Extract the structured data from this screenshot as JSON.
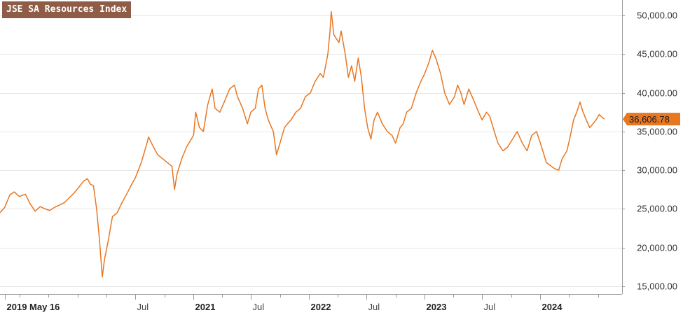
{
  "chart_data": {
    "type": "line",
    "title": "JSE SA Resources Index",
    "xlabel": "",
    "ylabel": "",
    "ylim": [
      14000,
      52000
    ],
    "xlim": [
      "2019-05-01",
      "2024-09-15"
    ],
    "grid": true,
    "y_axis_position": "right",
    "y_ticks": [
      {
        "value": 15000,
        "label": "15,000.00"
      },
      {
        "value": 20000,
        "label": "20,000.00"
      },
      {
        "value": 25000,
        "label": "25,000.00"
      },
      {
        "value": 30000,
        "label": "30,000.00"
      },
      {
        "value": 35000,
        "label": "35,000.00"
      },
      {
        "value": 40000,
        "label": "40,000.00"
      },
      {
        "value": 45000,
        "label": "45,000.00"
      },
      {
        "value": 50000,
        "label": "50,000.00"
      }
    ],
    "x_ticks": [
      {
        "date": "2019-05-16",
        "label": "2019 May 16",
        "major": true
      },
      {
        "date": "2020-07-01",
        "label": "Jul",
        "major": false
      },
      {
        "date": "2021-01-01",
        "label": "2021",
        "major": true
      },
      {
        "date": "2021-07-01",
        "label": "Jul",
        "major": false
      },
      {
        "date": "2022-01-01",
        "label": "2022",
        "major": true
      },
      {
        "date": "2022-07-01",
        "label": "Jul",
        "major": false
      },
      {
        "date": "2023-01-01",
        "label": "2023",
        "major": true
      },
      {
        "date": "2023-07-01",
        "label": "Jul",
        "major": false
      },
      {
        "date": "2024-01-01",
        "label": "2024",
        "major": true
      }
    ],
    "minor_tick_dates": [
      "2019-07-01",
      "2019-10-01",
      "2020-01-01",
      "2020-04-01",
      "2020-10-01",
      "2021-04-01",
      "2021-10-01",
      "2022-04-01",
      "2022-10-01",
      "2023-04-01",
      "2023-10-01",
      "2024-04-01",
      "2024-07-01"
    ],
    "last_value": {
      "value": 36606.78,
      "label": "36,606.78"
    },
    "series": [
      {
        "color": "#e87722",
        "points": [
          [
            "2019-05-01",
            24500
          ],
          [
            "2019-05-16",
            25200
          ],
          [
            "2019-06-01",
            26800
          ],
          [
            "2019-06-15",
            27200
          ],
          [
            "2019-07-01",
            26600
          ],
          [
            "2019-07-20",
            26900
          ],
          [
            "2019-08-05",
            25600
          ],
          [
            "2019-08-20",
            24700
          ],
          [
            "2019-09-05",
            25300
          ],
          [
            "2019-09-20",
            25000
          ],
          [
            "2019-10-05",
            24800
          ],
          [
            "2019-10-20",
            25200
          ],
          [
            "2019-11-05",
            25500
          ],
          [
            "2019-11-20",
            25800
          ],
          [
            "2019-12-05",
            26400
          ],
          [
            "2019-12-20",
            27000
          ],
          [
            "2020-01-05",
            27800
          ],
          [
            "2020-01-20",
            28600
          ],
          [
            "2020-02-01",
            28900
          ],
          [
            "2020-02-10",
            28200
          ],
          [
            "2020-02-20",
            28000
          ],
          [
            "2020-03-01",
            25000
          ],
          [
            "2020-03-10",
            21000
          ],
          [
            "2020-03-19",
            16200
          ],
          [
            "2020-03-26",
            18500
          ],
          [
            "2020-04-05",
            20500
          ],
          [
            "2020-04-20",
            24000
          ],
          [
            "2020-05-05",
            24500
          ],
          [
            "2020-05-20",
            25800
          ],
          [
            "2020-06-05",
            27000
          ],
          [
            "2020-06-20",
            28200
          ],
          [
            "2020-07-01",
            29000
          ],
          [
            "2020-07-20",
            31000
          ],
          [
            "2020-08-05",
            33200
          ],
          [
            "2020-08-12",
            34300
          ],
          [
            "2020-08-25",
            33200
          ],
          [
            "2020-09-10",
            32000
          ],
          [
            "2020-09-25",
            31500
          ],
          [
            "2020-10-10",
            31000
          ],
          [
            "2020-10-25",
            30500
          ],
          [
            "2020-11-02",
            27500
          ],
          [
            "2020-11-10",
            29500
          ],
          [
            "2020-11-25",
            31500
          ],
          [
            "2020-12-10",
            33000
          ],
          [
            "2021-01-01",
            34500
          ],
          [
            "2021-01-08",
            37500
          ],
          [
            "2021-01-20",
            35500
          ],
          [
            "2021-02-01",
            35000
          ],
          [
            "2021-02-15",
            38500
          ],
          [
            "2021-03-01",
            40500
          ],
          [
            "2021-03-10",
            38000
          ],
          [
            "2021-03-25",
            37500
          ],
          [
            "2021-04-10",
            39000
          ],
          [
            "2021-04-25",
            40500
          ],
          [
            "2021-05-10",
            41000
          ],
          [
            "2021-05-20",
            39500
          ],
          [
            "2021-06-05",
            38000
          ],
          [
            "2021-06-20",
            36000
          ],
          [
            "2021-07-01",
            37500
          ],
          [
            "2021-07-15",
            38000
          ],
          [
            "2021-07-25",
            40500
          ],
          [
            "2021-08-05",
            41000
          ],
          [
            "2021-08-15",
            38000
          ],
          [
            "2021-08-25",
            36500
          ],
          [
            "2021-09-10",
            35000
          ],
          [
            "2021-09-20",
            32000
          ],
          [
            "2021-10-01",
            33500
          ],
          [
            "2021-10-15",
            35500
          ],
          [
            "2021-10-25",
            36000
          ],
          [
            "2021-11-05",
            36500
          ],
          [
            "2021-11-20",
            37500
          ],
          [
            "2021-12-05",
            38000
          ],
          [
            "2021-12-20",
            39500
          ],
          [
            "2022-01-05",
            40000
          ],
          [
            "2022-01-20",
            41500
          ],
          [
            "2022-02-05",
            42500
          ],
          [
            "2022-02-15",
            42000
          ],
          [
            "2022-03-01",
            45000
          ],
          [
            "2022-03-08",
            48000
          ],
          [
            "2022-03-12",
            50500
          ],
          [
            "2022-03-20",
            47500
          ],
          [
            "2022-04-05",
            46500
          ],
          [
            "2022-04-12",
            48000
          ],
          [
            "2022-04-25",
            45000
          ],
          [
            "2022-05-05",
            42000
          ],
          [
            "2022-05-15",
            43500
          ],
          [
            "2022-05-25",
            41500
          ],
          [
            "2022-06-05",
            44500
          ],
          [
            "2022-06-15",
            42000
          ],
          [
            "2022-06-25",
            38000
          ],
          [
            "2022-07-05",
            35500
          ],
          [
            "2022-07-15",
            34000
          ],
          [
            "2022-07-25",
            36500
          ],
          [
            "2022-08-05",
            37500
          ],
          [
            "2022-08-20",
            36000
          ],
          [
            "2022-09-05",
            35000
          ],
          [
            "2022-09-20",
            34500
          ],
          [
            "2022-10-01",
            33500
          ],
          [
            "2022-10-15",
            35500
          ],
          [
            "2022-10-25",
            36000
          ],
          [
            "2022-11-05",
            37500
          ],
          [
            "2022-11-20",
            38000
          ],
          [
            "2022-12-05",
            40000
          ],
          [
            "2022-12-20",
            41500
          ],
          [
            "2023-01-01",
            42500
          ],
          [
            "2023-01-15",
            44000
          ],
          [
            "2023-01-25",
            45500
          ],
          [
            "2023-02-05",
            44500
          ],
          [
            "2023-02-20",
            42500
          ],
          [
            "2023-03-05",
            40000
          ],
          [
            "2023-03-20",
            38500
          ],
          [
            "2023-04-05",
            39500
          ],
          [
            "2023-04-15",
            41000
          ],
          [
            "2023-04-25",
            40000
          ],
          [
            "2023-05-05",
            38500
          ],
          [
            "2023-05-20",
            40500
          ],
          [
            "2023-06-05",
            39000
          ],
          [
            "2023-06-20",
            37500
          ],
          [
            "2023-07-01",
            36500
          ],
          [
            "2023-07-15",
            37500
          ],
          [
            "2023-07-25",
            37000
          ],
          [
            "2023-08-05",
            35500
          ],
          [
            "2023-08-20",
            33500
          ],
          [
            "2023-09-05",
            32500
          ],
          [
            "2023-09-20",
            33000
          ],
          [
            "2023-10-05",
            34000
          ],
          [
            "2023-10-20",
            35000
          ],
          [
            "2023-11-05",
            33500
          ],
          [
            "2023-11-20",
            32500
          ],
          [
            "2023-12-05",
            34500
          ],
          [
            "2023-12-20",
            35000
          ],
          [
            "2024-01-05",
            33000
          ],
          [
            "2024-01-20",
            31000
          ],
          [
            "2024-02-05",
            30500
          ],
          [
            "2024-02-15",
            30200
          ],
          [
            "2024-02-28",
            30000
          ],
          [
            "2024-03-10",
            31500
          ],
          [
            "2024-03-25",
            32500
          ],
          [
            "2024-04-05",
            34500
          ],
          [
            "2024-04-15",
            36500
          ],
          [
            "2024-04-25",
            37500
          ],
          [
            "2024-05-05",
            38800
          ],
          [
            "2024-05-15",
            37500
          ],
          [
            "2024-05-25",
            36500
          ],
          [
            "2024-06-05",
            35500
          ],
          [
            "2024-06-15",
            36000
          ],
          [
            "2024-06-25",
            36500
          ],
          [
            "2024-07-05",
            37200
          ],
          [
            "2024-07-15",
            36800
          ],
          [
            "2024-07-22",
            36606.78
          ]
        ]
      }
    ]
  }
}
